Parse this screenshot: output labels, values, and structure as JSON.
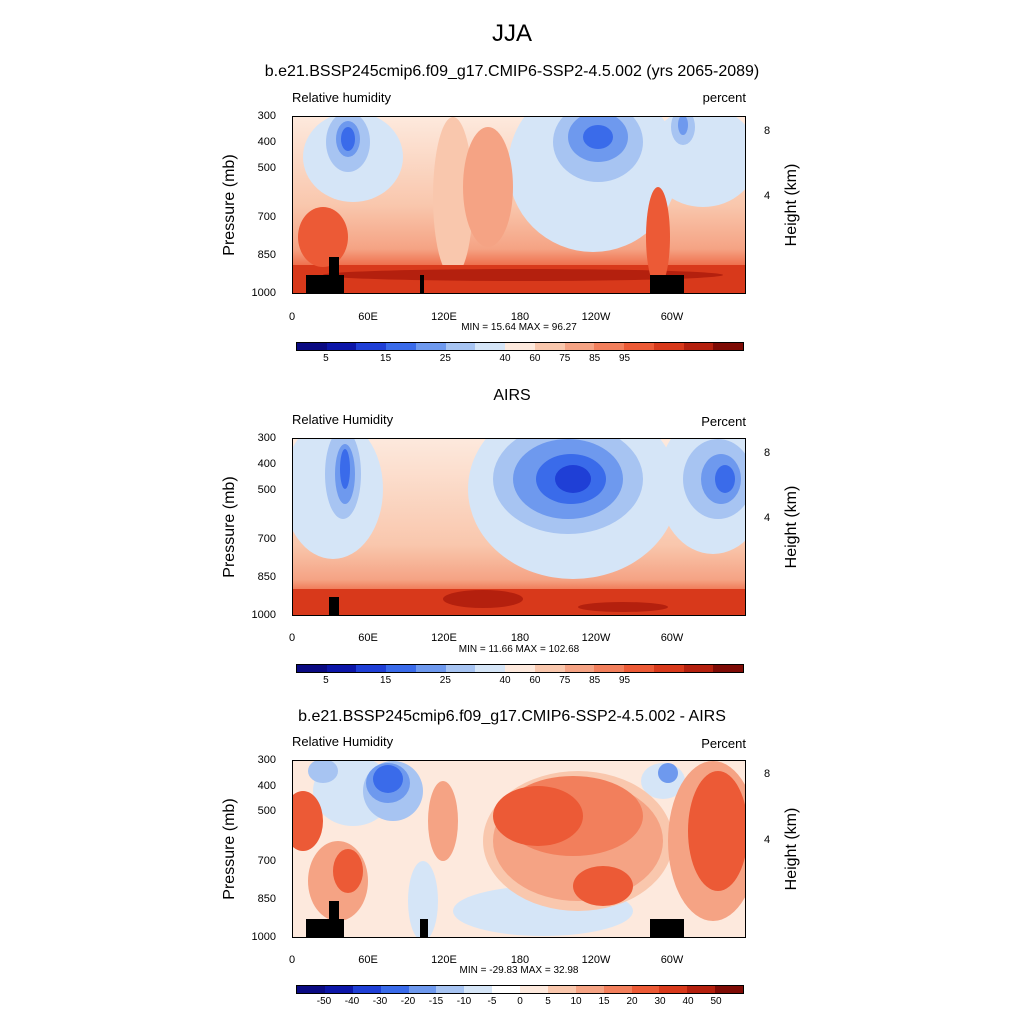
{
  "page": {
    "title": "JJA"
  },
  "colors": {
    "abs_scale": [
      "#0a0a82",
      "#0c16a8",
      "#1f3fd6",
      "#3a6bea",
      "#6e99ee",
      "#a7c4f2",
      "#d5e5f7",
      "#fde9dd",
      "#f9c7ad",
      "#f5a384",
      "#f27f5c",
      "#ec5a36",
      "#d8391b",
      "#b4200e",
      "#7e0b05"
    ],
    "diff_scale": [
      "#0a0a82",
      "#0c16a8",
      "#1f3fd6",
      "#3a6bea",
      "#6e99ee",
      "#a7c4f2",
      "#d5e5f7",
      "#ffffff",
      "#fde9dd",
      "#f9c7ad",
      "#f5a384",
      "#f27f5c",
      "#ec5a36",
      "#d8391b",
      "#b4200e",
      "#7e0b05"
    ]
  },
  "chart_data": [
    {
      "type": "heatmap",
      "title": "b.e21.BSSP245cmip6.f09_g17.CMIP6-SSP2-4.5.002 (yrs 2065-2089)",
      "variable_label": "Relative humidity",
      "units_label": "percent",
      "xlabel": "",
      "ylabel": "Pressure (mb)",
      "y2label": "Height (km)",
      "x_ticks": [
        "0",
        "60E",
        "120E",
        "180",
        "120W",
        "60W"
      ],
      "y_ticks": [
        "300",
        "400",
        "500",
        "700",
        "850",
        "1000"
      ],
      "y2_ticks": [
        "8",
        "4"
      ],
      "min_max": "MIN =  15.64  MAX =  96.27",
      "colorbar_labels": [
        "5",
        "15",
        "25",
        "40",
        "60",
        "75",
        "85",
        "95"
      ],
      "xlim": [
        0,
        360
      ],
      "ylim": [
        1000,
        300
      ]
    },
    {
      "type": "heatmap",
      "title": "AIRS",
      "variable_label": "Relative Humidity",
      "units_label": "Percent",
      "xlabel": "",
      "ylabel": "Pressure (mb)",
      "y2label": "Height (km)",
      "x_ticks": [
        "0",
        "60E",
        "120E",
        "180",
        "120W",
        "60W"
      ],
      "y_ticks": [
        "300",
        "400",
        "500",
        "700",
        "850",
        "1000"
      ],
      "y2_ticks": [
        "8",
        "4"
      ],
      "min_max": "MIN =  11.66  MAX = 102.68",
      "colorbar_labels": [
        "5",
        "15",
        "25",
        "40",
        "60",
        "75",
        "85",
        "95"
      ],
      "xlim": [
        0,
        360
      ],
      "ylim": [
        1000,
        300
      ]
    },
    {
      "type": "heatmap",
      "title": "b.e21.BSSP245cmip6.f09_g17.CMIP6-SSP2-4.5.002 - AIRS",
      "variable_label": "Relative Humidity",
      "units_label": "Percent",
      "xlabel": "",
      "ylabel": "Pressure (mb)",
      "y2label": "Height (km)",
      "x_ticks": [
        "0",
        "60E",
        "120E",
        "180",
        "120W",
        "60W"
      ],
      "y_ticks": [
        "300",
        "400",
        "500",
        "700",
        "850",
        "1000"
      ],
      "y2_ticks": [
        "8",
        "4"
      ],
      "min_max": "MIN = -29.83  MAX =  32.98",
      "colorbar_labels": [
        "-50",
        "-40",
        "-30",
        "-20",
        "-15",
        "-10",
        "-5",
        "0",
        "5",
        "10",
        "15",
        "20",
        "30",
        "40",
        "50"
      ],
      "xlim": [
        0,
        360
      ],
      "ylim": [
        1000,
        300
      ]
    }
  ]
}
